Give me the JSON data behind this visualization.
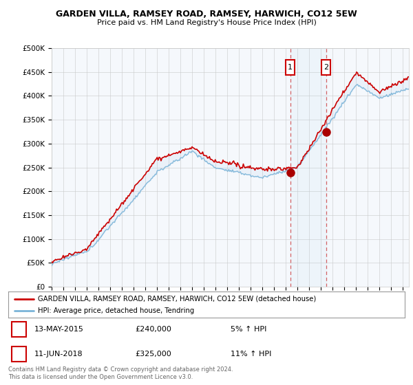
{
  "title": "GARDEN VILLA, RAMSEY ROAD, RAMSEY, HARWICH, CO12 5EW",
  "subtitle": "Price paid vs. HM Land Registry's House Price Index (HPI)",
  "ylim": [
    0,
    500000
  ],
  "xlim_start": 1995,
  "xlim_end": 2025.5,
  "sale1_year": 2015.37,
  "sale1_price": 240000,
  "sale1_label": "1",
  "sale1_date": "13-MAY-2015",
  "sale1_pct": "5%",
  "sale2_year": 2018.44,
  "sale2_price": 325000,
  "sale2_label": "2",
  "sale2_date": "11-JUN-2018",
  "sale2_pct": "11%",
  "hpi_color": "#7ab4d8",
  "price_color": "#cc0000",
  "sale_marker_color": "#aa0000",
  "legend_label1": "GARDEN VILLA, RAMSEY ROAD, RAMSEY, HARWICH, CO12 5EW (detached house)",
  "legend_label2": "HPI: Average price, detached house, Tendring",
  "footer": "Contains HM Land Registry data © Crown copyright and database right 2024.\nThis data is licensed under the Open Government Licence v3.0.",
  "chart_bg": "#f5f8fc",
  "grid_color": "#c8c8c8"
}
